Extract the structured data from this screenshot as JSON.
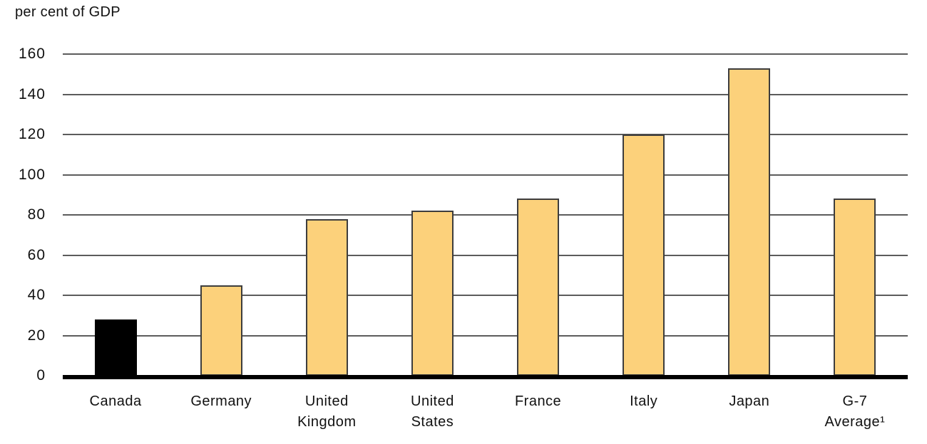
{
  "chart_data": {
    "type": "bar",
    "title": "per cent of GDP",
    "categories": [
      "Canada",
      "Germany",
      "United Kingdom",
      "United States",
      "France",
      "Italy",
      "Japan",
      "G-7 Average¹"
    ],
    "category_lines": [
      [
        "Canada"
      ],
      [
        "Germany"
      ],
      [
        "United",
        "Kingdom"
      ],
      [
        "United",
        "States"
      ],
      [
        "France"
      ],
      [
        "Italy"
      ],
      [
        "Japan"
      ],
      [
        "G-7",
        "Average¹"
      ]
    ],
    "values": [
      28,
      45,
      78,
      82,
      88,
      120,
      153,
      88
    ],
    "bar_fills": [
      "#000000",
      "#FCD17B",
      "#FCD17B",
      "#FCD17B",
      "#FCD17B",
      "#FCD17B",
      "#FCD17B",
      "#FCD17B"
    ],
    "bar_borders": [
      "#000000",
      "#3D3D3D",
      "#3D3D3D",
      "#3D3D3D",
      "#3D3D3D",
      "#3D3D3D",
      "#3D3D3D",
      "#3D3D3D"
    ],
    "ylim": [
      0,
      160
    ],
    "yticks": [
      0,
      20,
      40,
      60,
      80,
      100,
      120,
      140,
      160
    ],
    "xlabel": "",
    "ylabel": "per cent of GDP",
    "grid": true,
    "legend": "none",
    "colors": {
      "bar_fill": "#FCD17B",
      "highlight_bar_fill": "#000000",
      "bar_border": "#3D3D3D",
      "gridline": "#5C5C5C",
      "baseline": "#000000",
      "text": "#111111",
      "background": "#FFFFFF"
    }
  }
}
